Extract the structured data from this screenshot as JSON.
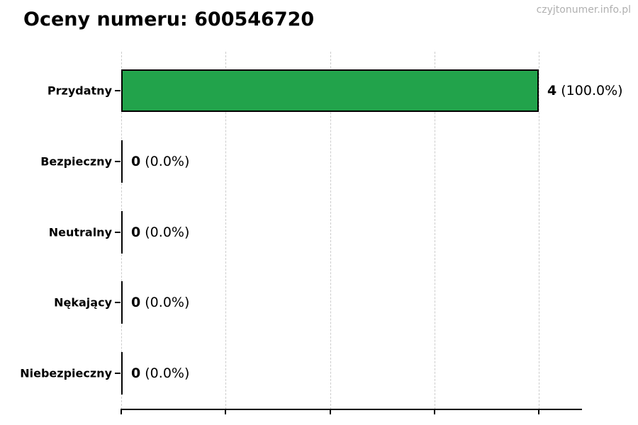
{
  "header": {
    "title": "Oceny numeru: 600546720",
    "watermark": "czyjtonumer.info.pl"
  },
  "chart_data": {
    "type": "bar",
    "orientation": "horizontal",
    "title": "Oceny numeru: 600546720",
    "categories": [
      "Przydatny",
      "Bezpieczny",
      "Neutralny",
      "Nękający",
      "Niebezpieczny"
    ],
    "values": [
      4,
      0,
      0,
      0,
      0
    ],
    "counts": [
      "4",
      "0",
      "0",
      "0",
      "0"
    ],
    "percent_labels": [
      "(100.0%)",
      "(0.0%)",
      "(0.0%)",
      "(0.0%)",
      "(0.0%)"
    ],
    "xlim": [
      0,
      4.4
    ],
    "xticks": [
      0,
      1,
      2,
      3,
      4
    ],
    "xtick_labels_visible": false,
    "grid": "vertical-dashed",
    "legend": "none",
    "bar_color": "#22a34b",
    "bar_edge_color": "#000000",
    "gridline_color": "#cccccc"
  }
}
